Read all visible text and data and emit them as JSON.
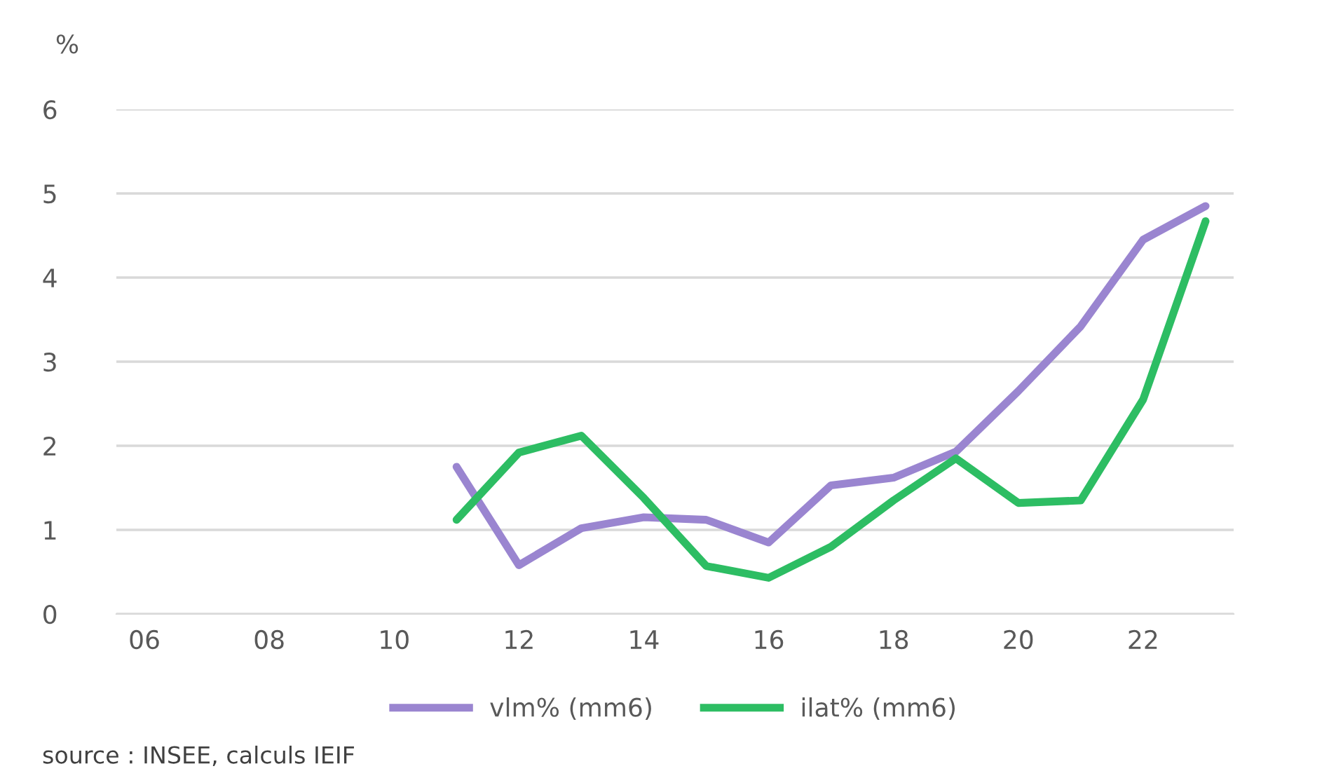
{
  "chart_data": {
    "type": "line",
    "ylabel": "%",
    "categories": [
      "06",
      null,
      "08",
      null,
      "10",
      null,
      "12",
      null,
      "14",
      null,
      "16",
      null,
      "18",
      null,
      "20",
      null,
      "22",
      null
    ],
    "series": [
      {
        "name": "vlm% (mm6)",
        "color": "#9a85d0",
        "values": [
          null,
          null,
          null,
          null,
          null,
          1.75,
          0.58,
          1.02,
          1.15,
          1.12,
          0.85,
          1.53,
          1.62,
          1.93,
          2.65,
          3.42,
          4.45,
          4.85
        ]
      },
      {
        "name": "ilat% (mm6)",
        "color": "#2dbd63",
        "values": [
          null,
          null,
          null,
          null,
          null,
          1.12,
          1.92,
          2.12,
          1.38,
          0.57,
          0.43,
          0.8,
          1.35,
          1.85,
          1.32,
          1.35,
          2.55,
          4.67
        ]
      }
    ],
    "ylim": [
      0,
      6
    ],
    "yticks": [
      0,
      1,
      2,
      3,
      4,
      5,
      6
    ],
    "grid": "y",
    "legend": "bottom",
    "annotations": [
      "source : INSEE, calculs IEIF"
    ]
  }
}
